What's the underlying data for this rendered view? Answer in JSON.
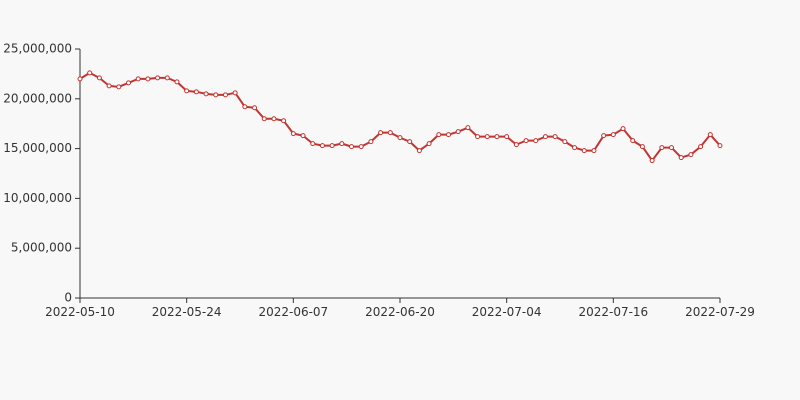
{
  "chart_data": {
    "type": "line",
    "title": "",
    "xlabel": "",
    "ylabel": "",
    "x_tick_labels": [
      "2022-05-10",
      "2022-05-24",
      "2022-06-07",
      "2022-06-20",
      "2022-07-04",
      "2022-07-16",
      "2022-07-29"
    ],
    "y_ticks": [
      0,
      5000000,
      10000000,
      15000000,
      20000000,
      25000000
    ],
    "y_tick_labels": [
      "0",
      "5,000,000",
      "10,000,000",
      "15,000,000",
      "20,000,000",
      "25,000,000"
    ],
    "ylim": [
      0,
      25000000
    ],
    "grid": false,
    "legend": "none",
    "line_color": "#c23531",
    "series": [
      {
        "values": [
          22000000,
          22600000,
          22100000,
          21300000,
          21200000,
          21600000,
          22000000,
          22000000,
          22100000,
          22100000,
          21700000,
          20800000,
          20700000,
          20500000,
          20400000,
          20400000,
          20600000,
          19200000,
          19100000,
          18000000,
          18000000,
          17800000,
          16500000,
          16300000,
          15500000,
          15300000,
          15300000,
          15500000,
          15200000,
          15200000,
          15700000,
          16600000,
          16600000,
          16100000,
          15700000,
          14800000,
          15500000,
          16400000,
          16400000,
          16700000,
          17100000,
          16200000,
          16200000,
          16200000,
          16200000,
          15400000,
          15800000,
          15800000,
          16200000,
          16200000,
          15700000,
          15100000,
          14800000,
          14800000,
          16300000,
          16400000,
          17000000,
          15800000,
          15200000,
          13800000,
          15100000,
          15100000,
          14100000,
          14400000,
          15200000,
          16400000,
          15300000
        ]
      }
    ]
  }
}
